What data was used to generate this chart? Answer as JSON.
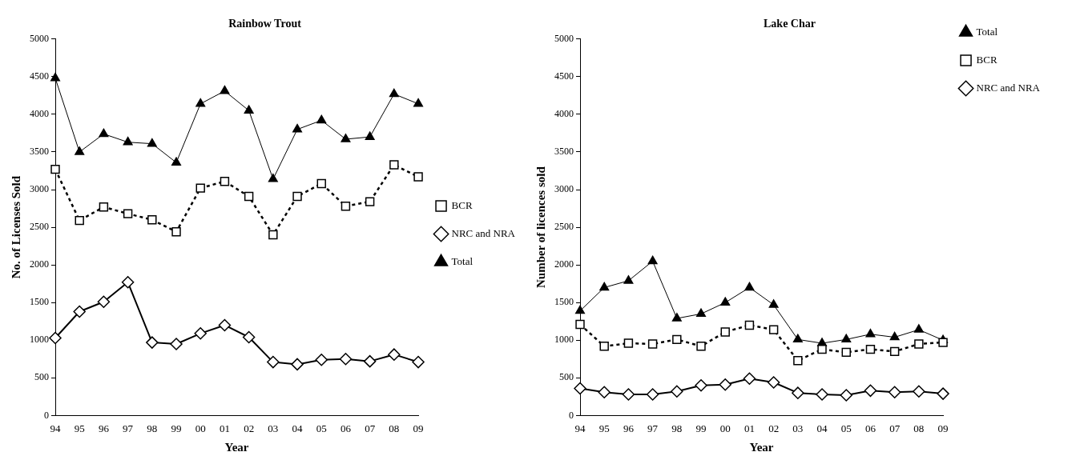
{
  "chart_data": [
    {
      "type": "line",
      "title": "Rainbow Trout",
      "xlabel": "Year",
      "ylabel": "No. of Licenses Sold",
      "categories": [
        "94",
        "95",
        "96",
        "97",
        "98",
        "99",
        "00",
        "01",
        "02",
        "03",
        "04",
        "05",
        "06",
        "07",
        "08",
        "09"
      ],
      "ylim": [
        0,
        5000
      ],
      "yticks": [
        0,
        500,
        1000,
        1500,
        2000,
        2500,
        3000,
        3500,
        4000,
        4500,
        5000
      ],
      "grid": false,
      "legend": "right",
      "series": [
        {
          "name": "BCR",
          "color": "#000000",
          "marker": "square",
          "line_style": "dashed",
          "values": [
            3270,
            2590,
            2770,
            2680,
            2600,
            2440,
            3020,
            3110,
            2910,
            2400,
            2910,
            3080,
            2780,
            2840,
            3330,
            3170
          ]
        },
        {
          "name": "NRC and NRA",
          "color": "#000000",
          "marker": "diamond",
          "line_style": "solid",
          "values": [
            1030,
            1380,
            1510,
            1770,
            970,
            950,
            1090,
            1200,
            1040,
            710,
            680,
            740,
            750,
            720,
            810,
            710
          ]
        },
        {
          "name": "Total",
          "color": "#000000",
          "marker": "triangle",
          "line_style": "solid",
          "values": [
            4480,
            3500,
            3740,
            3630,
            3610,
            3360,
            4140,
            4310,
            4050,
            3140,
            3800,
            3920,
            3670,
            3700,
            4270,
            4140
          ]
        }
      ]
    },
    {
      "type": "line",
      "title": "Lake Char",
      "xlabel": "Year",
      "ylabel": "Number of licences sold",
      "categories": [
        "94",
        "95",
        "96",
        "97",
        "98",
        "99",
        "00",
        "01",
        "02",
        "03",
        "04",
        "05",
        "06",
        "07",
        "08",
        "09"
      ],
      "ylim": [
        0,
        5000
      ],
      "yticks": [
        0,
        500,
        1000,
        1500,
        2000,
        2500,
        3000,
        3500,
        4000,
        4500,
        5000
      ],
      "grid": false,
      "legend": "top right",
      "series": [
        {
          "name": "Total",
          "color": "#000000",
          "marker": "triangle",
          "line_style": "solid",
          "values": [
            1390,
            1700,
            1790,
            2050,
            1290,
            1350,
            1500,
            1700,
            1470,
            1010,
            960,
            1010,
            1080,
            1040,
            1140,
            1000
          ]
        },
        {
          "name": "BCR",
          "color": "#000000",
          "marker": "square",
          "line_style": "dashed",
          "values": [
            1210,
            920,
            960,
            950,
            1010,
            920,
            1110,
            1200,
            1140,
            730,
            880,
            840,
            880,
            850,
            950,
            970
          ]
        },
        {
          "name": "NRC and NRA",
          "color": "#000000",
          "marker": "diamond",
          "line_style": "solid",
          "values": [
            360,
            310,
            280,
            280,
            320,
            400,
            410,
            490,
            440,
            300,
            280,
            270,
            330,
            310,
            320,
            290
          ]
        }
      ]
    }
  ]
}
